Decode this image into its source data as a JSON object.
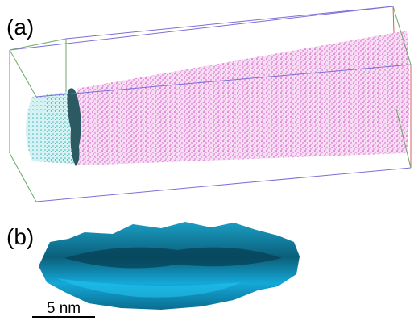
{
  "panels": [
    {
      "label": "(a)"
    },
    {
      "label": "(b)"
    }
  ],
  "scale_bar": {
    "label": "5 nm"
  }
}
